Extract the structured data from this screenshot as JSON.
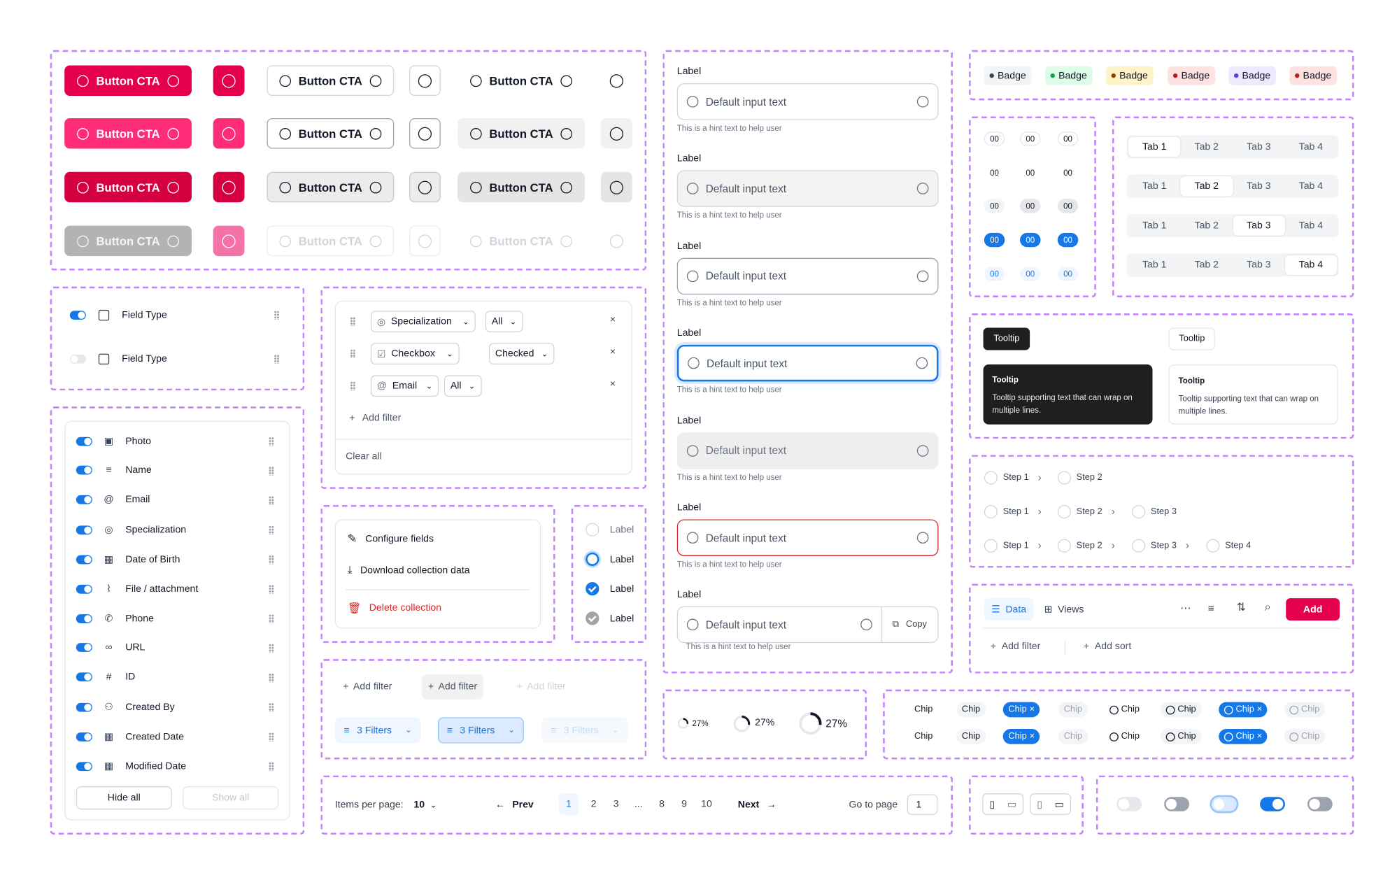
{
  "buttons": {
    "label": "Button CTA"
  },
  "fields_small": {
    "items": [
      {
        "label": "Field Type",
        "on": true
      },
      {
        "label": "Field Type",
        "on": false
      }
    ]
  },
  "fields": {
    "items": [
      {
        "label": "Photo",
        "icon": "image-icon"
      },
      {
        "label": "Name",
        "icon": "lines-icon"
      },
      {
        "label": "Email",
        "icon": "at-icon"
      },
      {
        "label": "Specialization",
        "icon": "badge-icon"
      },
      {
        "label": "Date of Birth",
        "icon": "calendar-icon"
      },
      {
        "label": "File / attachment",
        "icon": "paperclip-icon"
      },
      {
        "label": "Phone",
        "icon": "phone-icon"
      },
      {
        "label": "URL",
        "icon": "link-icon"
      },
      {
        "label": "ID",
        "icon": "hash-icon"
      },
      {
        "label": "Created By",
        "icon": "user-icon"
      },
      {
        "label": "Created Date",
        "icon": "calendar-icon"
      },
      {
        "label": "Modified Date",
        "icon": "calendar-icon"
      }
    ],
    "hide_all": "Hide all",
    "show_all": "Show all"
  },
  "filters": {
    "rows": [
      {
        "field": "Specialization",
        "value": "All"
      },
      {
        "field": "Checkbox",
        "value": "Checked"
      },
      {
        "field": "Email",
        "value": "All"
      }
    ],
    "add_filter": "Add filter",
    "clear_all": "Clear all"
  },
  "menu": {
    "configure": "Configure fields",
    "download": "Download collection data",
    "delete": "Delete collection"
  },
  "radios": {
    "label": "Label"
  },
  "filter_buttons": {
    "add_filter": "Add filter",
    "filters": "3 Filters"
  },
  "inputs": {
    "label": "Label",
    "placeholder": "Default input text",
    "hint": "This is a hint text to help user",
    "copy": "Copy"
  },
  "progress": {
    "value": "27%",
    "fraction": 0.27
  },
  "badges": {
    "label": "Badge",
    "colors": [
      "#374151",
      "#16a34a",
      "#92400e",
      "#b91c1c",
      "#4f46e5",
      "#b91c1c"
    ]
  },
  "counts": {
    "value": "00"
  },
  "tabs": {
    "labels": [
      "Tab 1",
      "Tab 2",
      "Tab 3",
      "Tab 4"
    ]
  },
  "tooltips": {
    "short": "Tooltip",
    "title": "Tooltip",
    "body": "Tooltip supporting text that can wrap on multiple lines."
  },
  "steps": {
    "labels": [
      "Step 1",
      "Step 2",
      "Step 3",
      "Step 4"
    ]
  },
  "toolbar": {
    "data": "Data",
    "views": "Views",
    "add": "Add",
    "add_filter": "Add filter",
    "add_sort": "Add sort"
  },
  "chips": {
    "label": "Chip"
  },
  "pagination": {
    "items_per_page": "Items per page:",
    "per_page_value": "10",
    "prev": "Prev",
    "next": "Next",
    "pages": [
      "1",
      "2",
      "3",
      "...",
      "8",
      "9",
      "10"
    ],
    "goto": "Go to page",
    "goto_value": "1"
  },
  "accent": "#e5004c",
  "blue": "#1677e6"
}
